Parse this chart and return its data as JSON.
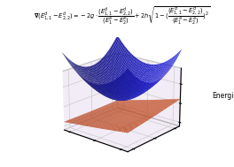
{
  "title_formula": "$\\mathbf{\\nabla}(E^d_{1,1} - E^d_{2,2}) = -2g \\cdot \\dfrac{(E^d_{1,1} - E^d_{2,2})}{(E^a_1 - E^a_2)} + 2h\\sqrt{1 - (\\dfrac{(E^d_{1,1} - E^d_{2,2})}{(E^a_1 - E^a_2)})^2}$",
  "zlabel": "Energies",
  "surface1_color": "#2222dd",
  "surface2_color": "#e85520",
  "pane_color": "#e8e0f0",
  "alpha1": 0.95,
  "alpha2": 0.95,
  "elev": 20,
  "azim": -50,
  "figsize": [
    2.64,
    1.89
  ],
  "dpi": 100,
  "grid_range": [
    -2.5,
    2.5
  ],
  "grid_points": 50
}
